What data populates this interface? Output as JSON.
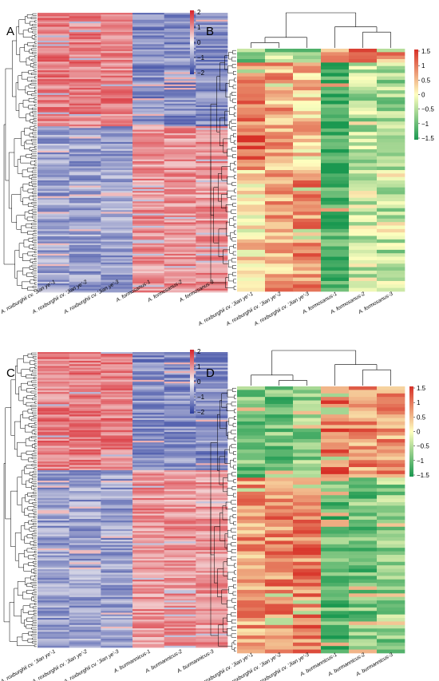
{
  "chart_data": [
    {
      "panel": "A",
      "type": "heatmap",
      "columns": [
        "A. roxburghii cv. 'Jian ye'-1",
        "A. roxburghii cv. 'Jian ye'-2",
        "A. roxburghii cv. 'Jian ye'-3",
        "A. formosanus-1",
        "A. formosanus-2",
        "A. formosanus-3"
      ],
      "palette": {
        "low": "#2c3e9e",
        "mid": "#f8f4f4",
        "high": "#d7222a"
      },
      "colorbar": {
        "ticks": [
          "2",
          "1",
          "0",
          "−1",
          "−2"
        ],
        "min": -2,
        "max": 2
      },
      "row_dendrogram": true,
      "column_dendrogram": false,
      "blocks": [
        {
          "row_fraction": 0.405,
          "values": [
            1.1,
            1.1,
            1.1,
            -1.1,
            -1.1,
            -1.1
          ]
        },
        {
          "row_fraction": 0.595,
          "values": [
            -0.9,
            -0.9,
            -0.9,
            0.9,
            0.9,
            0.9
          ]
        }
      ]
    },
    {
      "panel": "B",
      "type": "heatmap",
      "columns": [
        "A. roxburghii cv. 'Jian ye'-1",
        "A. roxburghii cv. 'Jian ye'-2",
        "A. roxburghii cv. 'Jian ye'-3",
        "A. formosanus-1",
        "A. formosanus-2",
        "A. formosanus-3"
      ],
      "palette": {
        "low": "#1a9850",
        "mid": "#ffffbf",
        "high": "#d73027"
      },
      "colorbar": {
        "ticks": [
          "1.5",
          "1",
          "0.5",
          "0",
          "−0.5",
          "−1",
          "−1.5"
        ],
        "min": -1.5,
        "max": 1.5
      },
      "row_dendrogram": true,
      "column_dendrogram": true,
      "column_tree": [
        [
          0,
          1
        ],
        [
          0,
          1,
          2
        ],
        [
          4,
          5
        ],
        [
          3,
          4,
          5
        ],
        [
          0,
          1,
          2,
          3,
          4,
          5
        ]
      ],
      "blocks": [
        {
          "row_fraction": 0.05,
          "values": [
            -0.9,
            -0.6,
            -1.0,
            0.7,
            0.9,
            0.8
          ]
        },
        {
          "row_fraction": 0.45,
          "values": [
            1.0,
            0.6,
            0.4,
            -1.3,
            -0.5,
            -0.6
          ]
        },
        {
          "row_fraction": 0.5,
          "values": [
            0.2,
            0.6,
            0.8,
            -1.2,
            -0.3,
            -0.5
          ]
        }
      ]
    },
    {
      "panel": "C",
      "type": "heatmap",
      "columns": [
        "A. roxburghii cv. 'Jian ye'-1",
        "A. roxburghii cv. 'Jian ye'-2",
        "A. roxburghii cv. 'Jian ye'-3",
        "A. burmannicus-1",
        "A. burmannicus-2",
        "A. burmannicus-3"
      ],
      "palette": {
        "low": "#2c3e9e",
        "mid": "#f8f4f4",
        "high": "#d7222a"
      },
      "colorbar": {
        "ticks": [
          "2",
          "1",
          "0",
          "−1",
          "−2"
        ],
        "min": -2,
        "max": 2
      },
      "row_dendrogram": true,
      "column_dendrogram": false,
      "blocks": [
        {
          "row_fraction": 0.4,
          "values": [
            1.1,
            1.1,
            1.1,
            -1.1,
            -1.1,
            -1.1
          ]
        },
        {
          "row_fraction": 0.6,
          "values": [
            -0.9,
            -0.9,
            -0.9,
            0.9,
            0.9,
            0.9
          ]
        }
      ]
    },
    {
      "panel": "D",
      "type": "heatmap",
      "columns": [
        "A. roxburghii cv. 'Jian ye'-1",
        "A. roxburghii cv. 'Jian ye'-2",
        "A. roxburghii cv. 'Jian ye'-3",
        "A. burmannicus-1",
        "A. burmannicus-2",
        "A. burmannicus-3"
      ],
      "palette": {
        "low": "#1a9850",
        "mid": "#ffffbf",
        "high": "#d73027"
      },
      "colorbar": {
        "ticks": [
          "1.5",
          "1",
          "0.5",
          "0",
          "−0.5",
          "−1",
          "−1.5"
        ],
        "min": -1.5,
        "max": 1.5
      },
      "row_dendrogram": true,
      "column_dendrogram": true,
      "column_tree": [
        [
          1,
          2
        ],
        [
          0,
          1,
          2
        ],
        [
          4,
          5
        ],
        [
          3,
          4,
          5
        ],
        [
          0,
          1,
          2,
          3,
          4,
          5
        ]
      ],
      "blocks": [
        {
          "row_fraction": 0.34,
          "values": [
            -0.9,
            -0.9,
            -0.8,
            1.0,
            0.8,
            0.7
          ]
        },
        {
          "row_fraction": 0.66,
          "values": [
            0.7,
            0.8,
            0.9,
            -1.0,
            -0.9,
            -0.7
          ]
        }
      ]
    }
  ]
}
